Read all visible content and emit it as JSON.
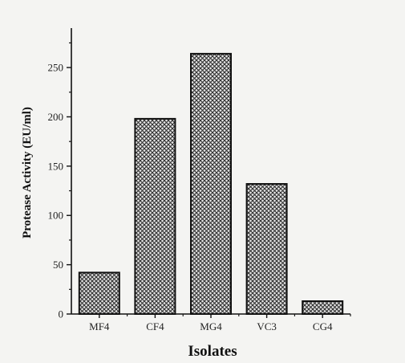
{
  "chart_data": {
    "type": "bar",
    "title": "",
    "xlabel": "Isolates",
    "ylabel": "Protease Activity (EU/ml)",
    "categories": [
      "MF4",
      "CF4",
      "MG4",
      "VC3",
      "CG4"
    ],
    "values": [
      42,
      198,
      264,
      132,
      13
    ],
    "ylim": [
      0,
      290
    ],
    "yticks": [
      0,
      50,
      100,
      150,
      200,
      250
    ],
    "grid": false,
    "legend": "none",
    "bar_fill": "crosshatch",
    "colors": {
      "bar_edge": "#111111",
      "hatch": "#333333",
      "background": "#f4f4f2"
    }
  }
}
